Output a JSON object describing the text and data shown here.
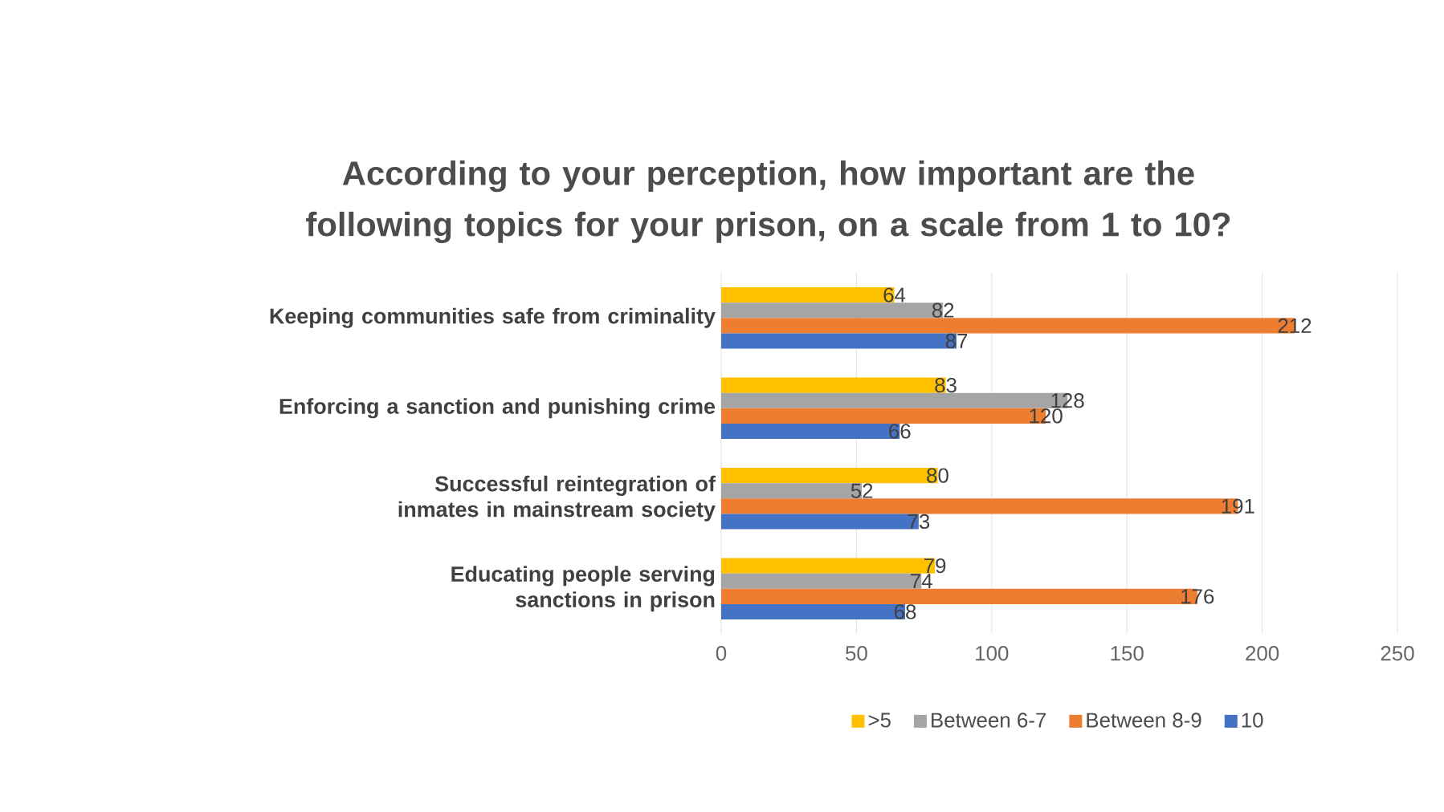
{
  "chart_data": {
    "type": "bar",
    "orientation": "horizontal",
    "title": "According to your perception, how important are the following topics for your prison, on a scale from 1 to 10?",
    "categories": [
      "Keeping communities safe from criminality",
      "Enforcing a sanction and punishing crime",
      "Successful reintegration of inmates in mainstream society",
      "Educating people serving sanctions in prison"
    ],
    "series": [
      {
        "name": ">5",
        "color": "#ffc000",
        "values": [
          64,
          83,
          80,
          79
        ]
      },
      {
        "name": "Between 6-7",
        "color": "#a5a5a5",
        "values": [
          82,
          128,
          52,
          74
        ]
      },
      {
        "name": "Between 8-9",
        "color": "#ed7d31",
        "values": [
          212,
          120,
          191,
          176
        ]
      },
      {
        "name": "10",
        "color": "#4472c4",
        "values": [
          87,
          66,
          73,
          68
        ]
      }
    ],
    "xlim": [
      0,
      250
    ],
    "xticks": [
      0,
      50,
      100,
      150,
      200,
      250
    ],
    "grid": "x",
    "legend": "bottom",
    "data_labels": true
  }
}
